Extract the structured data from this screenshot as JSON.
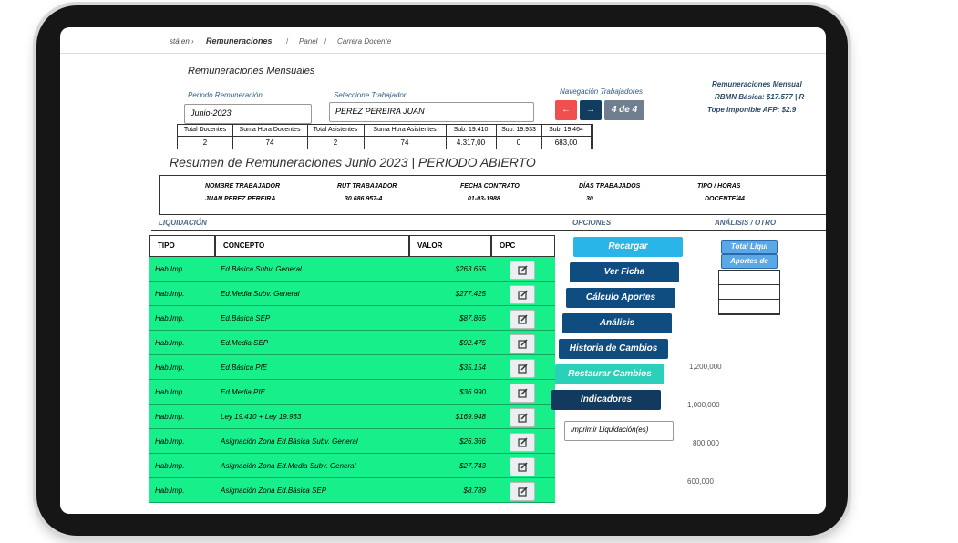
{
  "breadcrumb": {
    "prefix": "stá en ›",
    "items": [
      "Remuneraciones",
      "Panel",
      "Carrera Docente"
    ],
    "separator": "/"
  },
  "heading": "Remuneraciones Mensuales",
  "filters": {
    "periodo_label": "Periodo Remuneración",
    "periodo_value": "Junio-2023",
    "trabajador_label": "Seleccione Trabajador",
    "trabajador_value": "PEREZ PEREIRA JUAN",
    "nav_label": "Navegación Trabajadores",
    "prev": "←",
    "next": "→",
    "position": "4 de 4"
  },
  "info_right": [
    "Remuneraciones Mensual",
    "RBMN Básica: $17.577 | R",
    "Tope Imponible AFP: $2.9"
  ],
  "summary": {
    "headers": [
      "Total Docentes",
      "Suma Hora Docentes",
      "Total Asistentes",
      "Suma Hora Asistentes",
      "Sub. 19.410",
      "Sub. 19.933",
      "Sub. 19.464"
    ],
    "values": [
      "2",
      "74",
      "2",
      "74",
      "4.317,00",
      "0",
      "683,00"
    ]
  },
  "title": "Resumen de Remuneraciones Junio 2023 | PERIODO ABIERTO",
  "worker": {
    "headers": [
      "NOMBRE TRABAJADOR",
      "RUT TRABAJADOR",
      "FECHA CONTRATO",
      "DÍAS TRABAJADOS",
      "TIPO / HORAS"
    ],
    "values": [
      "JUAN PEREZ PEREIRA",
      "30.686.957-4",
      "01-03-1988",
      "30",
      "DOCENTE/44"
    ]
  },
  "sections": [
    "LIQUIDACIÓN",
    "OPCIONES",
    "ANÁLISIS / OTRO"
  ],
  "table": {
    "headers": [
      "TIPO",
      "CONCEPTO",
      "VALOR",
      "OPC"
    ],
    "rows": [
      [
        "Hab.Imp.",
        "Ed.Básica Subv. General",
        "$263.655"
      ],
      [
        "Hab.Imp.",
        "Ed.Media Subv. General",
        "$277.425"
      ],
      [
        "Hab.Imp.",
        "Ed.Básica SEP",
        "$87.865"
      ],
      [
        "Hab.Imp.",
        "Ed.Media SEP",
        "$92.475"
      ],
      [
        "Hab.Imp.",
        "Ed.Básica PIE",
        "$35.154"
      ],
      [
        "Hab.Imp.",
        "Ed.Media PIE",
        "$36.990"
      ],
      [
        "Hab.Imp.",
        "Ley 19.410 + Ley 19.933",
        "$169.948"
      ],
      [
        "Hab.Imp.",
        "Asignación Zona Ed.Básica Subv. General",
        "$26.366"
      ],
      [
        "Hab.Imp.",
        "Asignación Zona Ed.Media Subv. General",
        "$27.743"
      ],
      [
        "Hab.Imp.",
        "Asignación Zona Ed.Básica SEP",
        "$8.789"
      ]
    ]
  },
  "options": [
    "Recargar",
    "Ver Ficha",
    "Cálculo Aportes",
    "Análisis",
    "Historia de Cambios",
    "Restaurar Cambios",
    "Indicadores"
  ],
  "print_select": "Imprimir Liquidación(es)",
  "analysis_tabs": [
    "Total Liqui",
    "Aportes de"
  ],
  "chart_axis_labels": [
    "1,200,000",
    "1,000,000",
    "800,000",
    "600,000"
  ]
}
